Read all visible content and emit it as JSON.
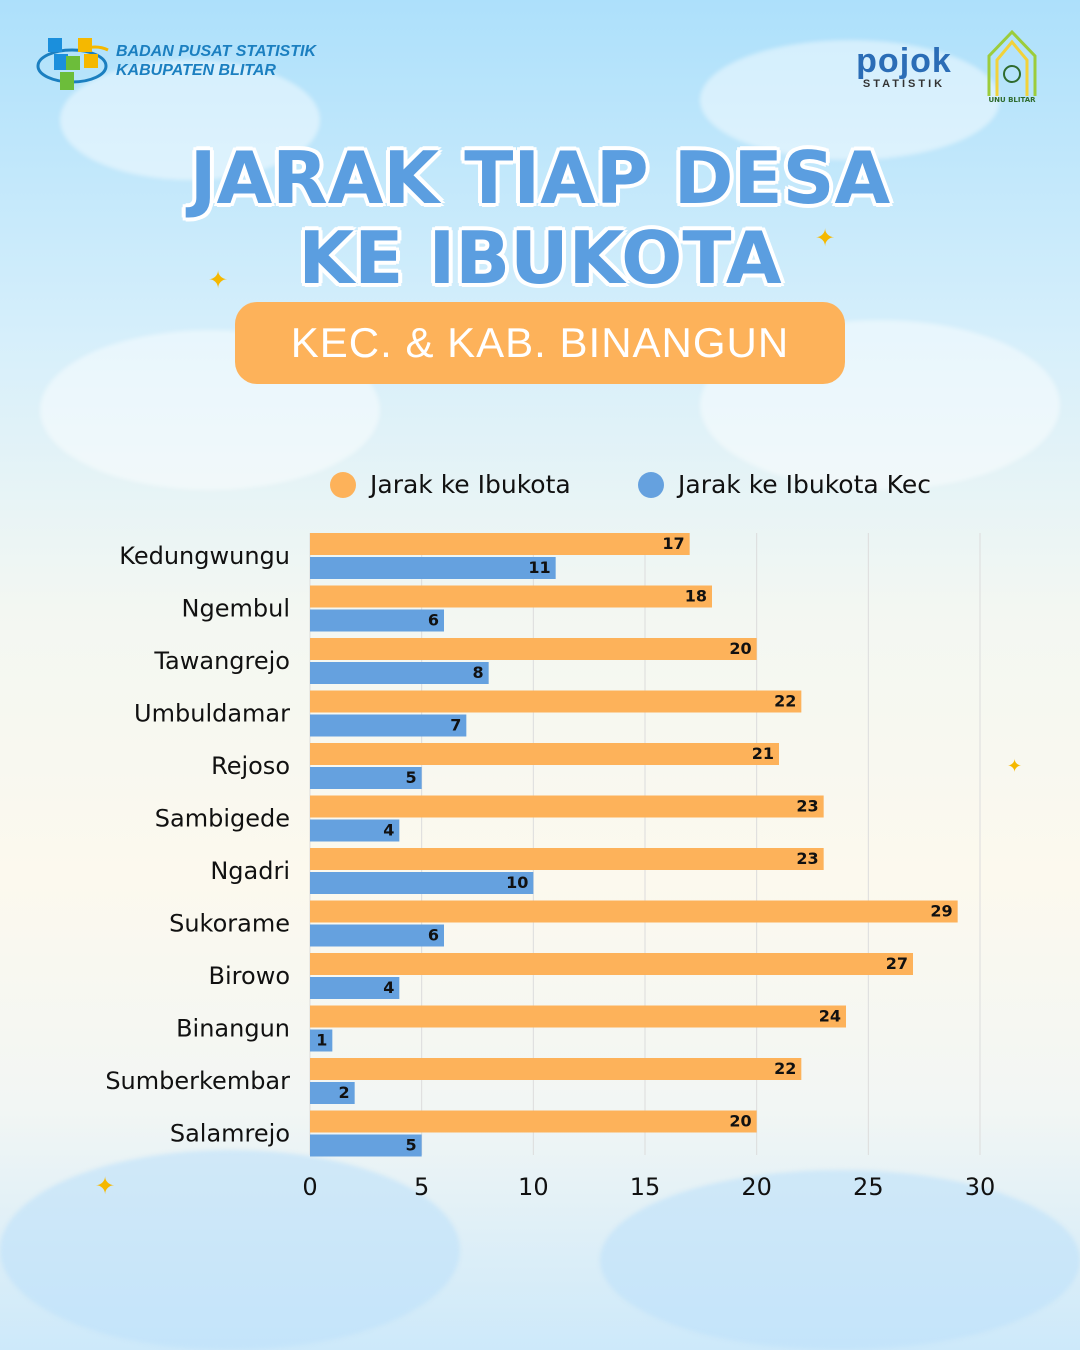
{
  "header": {
    "org_line1": "BADAN PUSAT STATISTIK",
    "org_line2": "KABUPATEN BLITAR",
    "partner1_word": "pojok",
    "partner1_sub": "STATISTIK",
    "partner2": "UNU BLITAR"
  },
  "title": {
    "line1": "JARAK TIAP DESA",
    "line2": "KE IBUKOTA",
    "subtitle": "KEC. & KAB. BINANGUN"
  },
  "colors": {
    "orange": "#fdb25a",
    "blue": "#65a1df"
  },
  "chart_data": {
    "type": "bar",
    "orientation": "horizontal",
    "categories": [
      "Kedungwungu",
      "Ngembul",
      "Tawangrejo",
      "Umbuldamar",
      "Rejoso",
      "Sambigede",
      "Ngadri",
      "Sukorame",
      "Birowo",
      "Binangun",
      "Sumberkembar",
      "Salamrejo"
    ],
    "series": [
      {
        "name": "Jarak ke Ibukota",
        "values": [
          17,
          18,
          20,
          22,
          21,
          23,
          23,
          29,
          27,
          24,
          22,
          20
        ]
      },
      {
        "name": "Jarak ke Ibukota Kec",
        "values": [
          11,
          6,
          8,
          7,
          5,
          4,
          10,
          6,
          4,
          1,
          2,
          5
        ]
      }
    ],
    "xlim": [
      0,
      30
    ],
    "xticks": [
      0,
      5,
      10,
      15,
      20,
      25,
      30
    ],
    "grid": true,
    "legend": "top"
  }
}
